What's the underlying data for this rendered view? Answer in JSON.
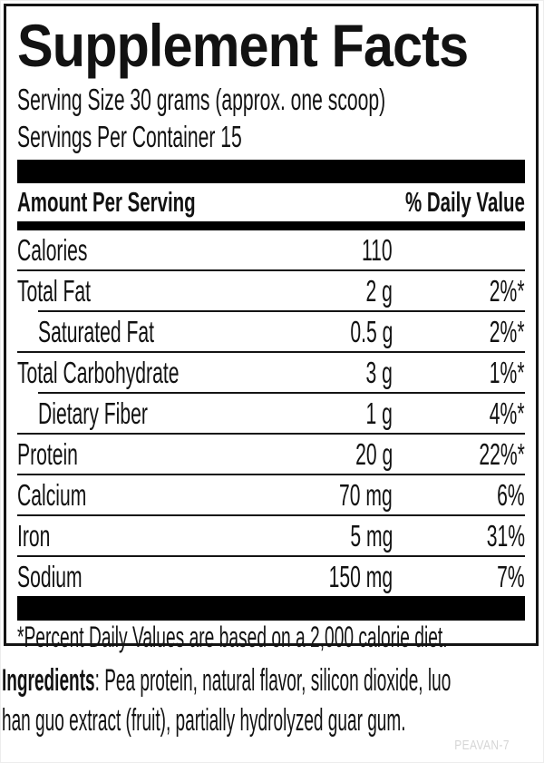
{
  "label": {
    "title": "Supplement Facts",
    "serving_size": "Serving Size 30 grams (approx. one scoop)",
    "servings_per_container": "Servings Per Container 15",
    "columns": {
      "amount_header": "Amount Per Serving",
      "dv_header": "% Daily Value"
    },
    "rows": [
      {
        "name": "Calories",
        "amount": "110",
        "dv": "",
        "indent": false,
        "sep_after": "full"
      },
      {
        "name": "Total Fat",
        "amount": "2 g",
        "dv": "2%*",
        "indent": false,
        "sep_after": "indent"
      },
      {
        "name": "Saturated Fat",
        "amount": "0.5 g",
        "dv": "2%*",
        "indent": true,
        "sep_after": "full"
      },
      {
        "name": "Total Carbohydrate",
        "amount": "3 g",
        "dv": "1%*",
        "indent": false,
        "sep_after": "indent"
      },
      {
        "name": "Dietary Fiber",
        "amount": "1 g",
        "dv": "4%*",
        "indent": true,
        "sep_after": "full"
      },
      {
        "name": "Protein",
        "amount": "20 g",
        "dv": "22%*",
        "indent": false,
        "sep_after": "full"
      },
      {
        "name": "Calcium",
        "amount": "70 mg",
        "dv": "6%",
        "indent": false,
        "sep_after": "full"
      },
      {
        "name": "Iron",
        "amount": "5 mg",
        "dv": "31%",
        "indent": false,
        "sep_after": "full"
      },
      {
        "name": "Sodium",
        "amount": "150 mg",
        "dv": "7%",
        "indent": false,
        "sep_after": "none"
      }
    ],
    "footnote": "*Percent Daily Values are based on a 2,000 calorie diet."
  },
  "ingredients": {
    "label": "Ingredients",
    "line1_rest": ": Pea protein, natural flavor, silicon dioxide, luo",
    "line2": "han guo extract (fruit), partially hydrolyzed guar gum."
  },
  "footer_code": "PEAVAN-7",
  "colors": {
    "text": "#121212",
    "bar": "#000000",
    "border": "#141414",
    "footer_code": "#d5d5d5"
  }
}
